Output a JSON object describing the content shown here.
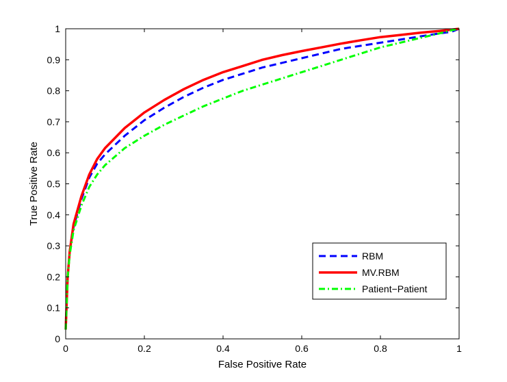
{
  "chart_data": {
    "type": "line",
    "title": "",
    "xlabel": "False Positive Rate",
    "ylabel": "True Positive Rate",
    "xlim": [
      0,
      1
    ],
    "ylim": [
      0,
      1
    ],
    "xticks": [
      0,
      0.2,
      0.4,
      0.6,
      0.8,
      1
    ],
    "xtick_labels": [
      "0",
      "0.2",
      "0.4",
      "0.6",
      "0.8",
      "1"
    ],
    "yticks": [
      0,
      0.1,
      0.2,
      0.3,
      0.4,
      0.5,
      0.6,
      0.7,
      0.8,
      0.9,
      1
    ],
    "ytick_labels": [
      "0",
      "0.1",
      "0.2",
      "0.3",
      "0.4",
      "0.5",
      "0.6",
      "0.7",
      "0.8",
      "0.9",
      "1"
    ],
    "grid": false,
    "legend_position": "bottom-right",
    "series": [
      {
        "name": "RBM",
        "color": "#0000ff",
        "style": "dashed",
        "x": [
          0,
          0.005,
          0.01,
          0.02,
          0.04,
          0.06,
          0.08,
          0.1,
          0.15,
          0.2,
          0.25,
          0.3,
          0.35,
          0.4,
          0.45,
          0.5,
          0.55,
          0.6,
          0.65,
          0.7,
          0.75,
          0.8,
          0.85,
          0.9,
          0.95,
          0.98,
          1.0
        ],
        "y": [
          0.03,
          0.2,
          0.28,
          0.36,
          0.45,
          0.52,
          0.565,
          0.595,
          0.655,
          0.705,
          0.745,
          0.78,
          0.81,
          0.835,
          0.855,
          0.875,
          0.89,
          0.905,
          0.92,
          0.935,
          0.945,
          0.955,
          0.965,
          0.975,
          0.985,
          0.99,
          1.0
        ]
      },
      {
        "name": "MV.RBM",
        "color": "#ff0000",
        "style": "solid",
        "x": [
          0,
          0.005,
          0.01,
          0.02,
          0.04,
          0.06,
          0.08,
          0.1,
          0.15,
          0.2,
          0.25,
          0.3,
          0.35,
          0.4,
          0.45,
          0.5,
          0.55,
          0.6,
          0.65,
          0.7,
          0.75,
          0.8,
          0.85,
          0.9,
          0.95,
          0.98,
          1.0
        ],
        "y": [
          0.03,
          0.2,
          0.28,
          0.37,
          0.46,
          0.53,
          0.58,
          0.615,
          0.68,
          0.73,
          0.77,
          0.805,
          0.835,
          0.86,
          0.88,
          0.9,
          0.915,
          0.928,
          0.94,
          0.952,
          0.963,
          0.973,
          0.98,
          0.987,
          0.993,
          0.997,
          1.0
        ]
      },
      {
        "name": "Patient−Patient",
        "color": "#00ff00",
        "style": "dashdot",
        "x": [
          0,
          0.005,
          0.01,
          0.02,
          0.04,
          0.06,
          0.08,
          0.1,
          0.15,
          0.2,
          0.25,
          0.3,
          0.35,
          0.4,
          0.45,
          0.5,
          0.55,
          0.6,
          0.65,
          0.7,
          0.75,
          0.8,
          0.85,
          0.9,
          0.95,
          0.98,
          1.0
        ],
        "y": [
          0.03,
          0.2,
          0.27,
          0.35,
          0.43,
          0.49,
          0.53,
          0.56,
          0.615,
          0.655,
          0.69,
          0.72,
          0.75,
          0.775,
          0.8,
          0.82,
          0.84,
          0.86,
          0.88,
          0.9,
          0.92,
          0.94,
          0.955,
          0.97,
          0.985,
          0.995,
          1.0
        ]
      }
    ]
  }
}
